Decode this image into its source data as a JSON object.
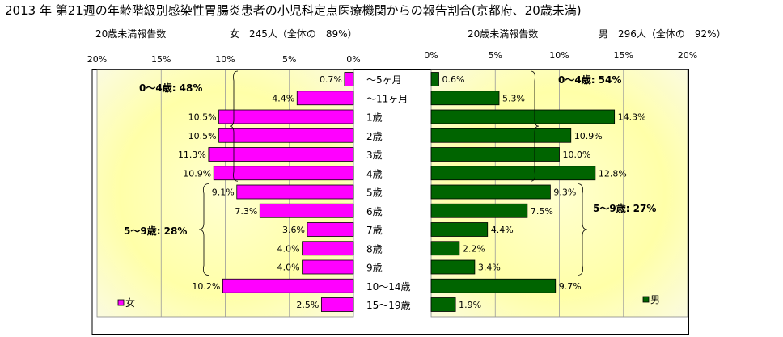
{
  "title": "2013 年 第21週の年齢階級別感染性胃腸炎患者の小児科定点医療機関からの報告割合(京都府、20歳未満)",
  "female_header": {
    "left": "20歳未満報告数",
    "right": "女　245人（全体の　89%）"
  },
  "male_header": {
    "left": "20歳未満報告数",
    "right": "男　296人（全体の　92%）"
  },
  "colors": {
    "female": "#ff00ff",
    "male": "#006400"
  },
  "chart_data": {
    "type": "bar",
    "categories": [
      "～5ヶ月",
      "～11ヶ月",
      "1歳",
      "2歳",
      "3歳",
      "4歳",
      "5歳",
      "6歳",
      "7歳",
      "8歳",
      "9歳",
      "10～14歳",
      "15～19歳"
    ],
    "series": [
      {
        "name": "女",
        "values": [
          0.7,
          4.4,
          10.5,
          10.5,
          11.3,
          10.9,
          9.1,
          7.3,
          3.6,
          4.0,
          4.0,
          10.2,
          2.5
        ]
      },
      {
        "name": "男",
        "values": [
          0.6,
          5.3,
          14.3,
          10.9,
          10.0,
          12.8,
          9.3,
          7.5,
          4.4,
          2.2,
          3.4,
          9.7,
          1.9
        ]
      }
    ],
    "female_axis": {
      "ticks": [
        "20%",
        "15%",
        "10%",
        "5%",
        "0%"
      ],
      "xlim": [
        0,
        20
      ]
    },
    "male_axis": {
      "ticks": [
        "0%",
        "5%",
        "10%",
        "15%",
        "20%"
      ],
      "xlim": [
        0,
        20
      ]
    },
    "female_annotations": [
      {
        "text": "0～4歳: 48%",
        "from": 0,
        "to": 5
      },
      {
        "text": "5～9歳: 28%",
        "from": 6,
        "to": 10
      }
    ],
    "male_annotations": [
      {
        "text": "0～4歳: 54%",
        "from": 0,
        "to": 5
      },
      {
        "text": "5～9歳: 27%",
        "from": 6,
        "to": 10
      }
    ],
    "legend": {
      "female": "女",
      "male": "男",
      "placement": "bottom"
    },
    "grid": true
  }
}
